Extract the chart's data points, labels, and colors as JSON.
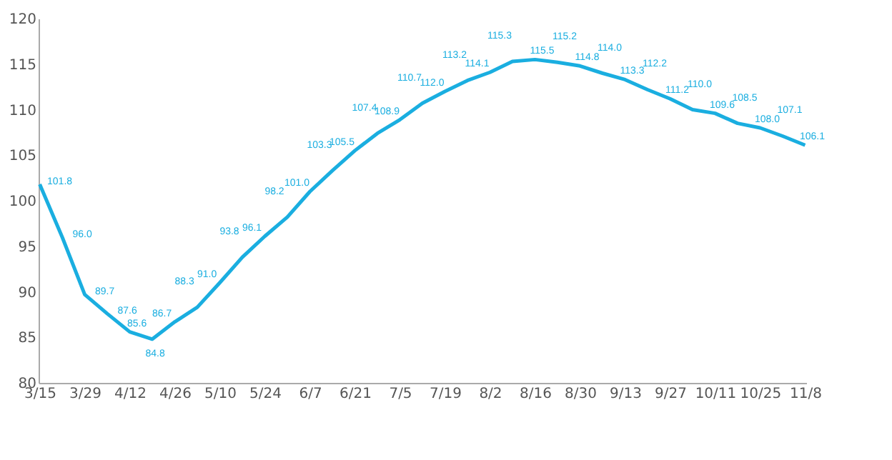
{
  "chart_data": {
    "type": "line",
    "categories": [
      "3/15",
      null,
      "3/29",
      null,
      "4/12",
      null,
      "4/26",
      null,
      "5/10",
      null,
      "5/24",
      null,
      "6/7",
      null,
      "6/21",
      null,
      "7/5",
      null,
      "7/19",
      null,
      "8/2",
      null,
      "8/16",
      null,
      "8/30",
      null,
      "9/13",
      null,
      "9/27",
      null,
      "10/11",
      null,
      "10/25",
      null,
      "11/8"
    ],
    "series": [
      {
        "color": "#1aaee0",
        "values": [
          101.8,
          96.0,
          89.7,
          87.6,
          85.6,
          84.8,
          86.7,
          88.3,
          91.0,
          93.8,
          96.1,
          98.2,
          101.0,
          103.3,
          105.5,
          107.4,
          108.9,
          110.7,
          112.0,
          113.2,
          114.1,
          115.3,
          115.5,
          115.2,
          114.8,
          114.0,
          113.3,
          112.2,
          111.2,
          110.0,
          109.6,
          108.5,
          108.0,
          107.1,
          106.1
        ],
        "value_labels": [
          "101.8",
          "96.0",
          "89.7",
          "87.6",
          "85.6",
          "84.8",
          "86.7",
          "88.3",
          "91.0",
          "93.8",
          "96.1",
          "98.2",
          "101.0",
          "103.3",
          "105.5",
          "107.4",
          "108.9",
          "110.7",
          "112.0",
          "113.2",
          "114.1",
          "115.3",
          "115.5",
          "115.2",
          "114.8",
          "114.0",
          "113.3",
          "112.2",
          "111.2",
          "110.0",
          "109.6",
          "108.5",
          "108.0",
          "107.1",
          "106.1"
        ]
      }
    ],
    "ylim": [
      80,
      120
    ],
    "yticks": [
      80,
      85,
      90,
      95,
      100,
      105,
      110,
      115,
      120
    ],
    "grid": false,
    "marker": "none",
    "line_style": "solid"
  }
}
